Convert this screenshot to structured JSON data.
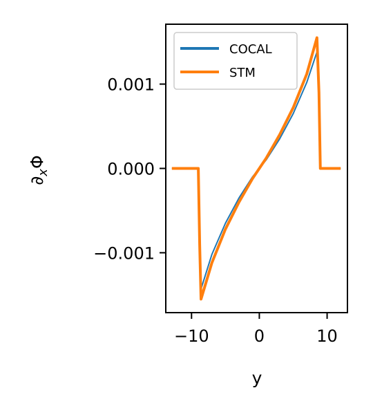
{
  "chart_data": {
    "type": "line",
    "xlabel": "y",
    "ylabel_main": "∂",
    "ylabel_sub": "x",
    "ylabel_tail": "Φ",
    "xlim": [
      -13.8,
      13.0
    ],
    "ylim": [
      -0.00171,
      0.00171
    ],
    "xticks": [
      {
        "value": -10,
        "label": "−10"
      },
      {
        "value": 0,
        "label": "0"
      },
      {
        "value": 10,
        "label": "10"
      }
    ],
    "yticks": [
      {
        "value": 0.001,
        "label": "0.001"
      },
      {
        "value": 0.0,
        "label": "0.000"
      },
      {
        "value": -0.001,
        "label": "−0.001"
      }
    ],
    "legend_position": "top-left",
    "series": [
      {
        "name": "COCAL",
        "color": "#1f77b4",
        "x": [
          -12.9,
          -9.0,
          -8.8,
          -8.6,
          -7.0,
          -5.0,
          -3.0,
          -1.0,
          0.0,
          1.0,
          3.0,
          5.0,
          7.0,
          8.5,
          8.8,
          9.0,
          12.0
        ],
        "y": [
          0.0,
          0.0,
          -0.0008,
          -0.00143,
          -0.00102,
          -0.00065,
          -0.00035,
          -0.0001,
          0.0,
          0.0001,
          0.00035,
          0.00065,
          0.00102,
          0.00138,
          0.0008,
          0.0,
          0.0
        ]
      },
      {
        "name": "STM",
        "color": "#ff7f0e",
        "x": [
          -12.9,
          -9.0,
          -8.8,
          -8.6,
          -7.0,
          -5.0,
          -3.0,
          -1.0,
          0.0,
          1.0,
          3.0,
          5.0,
          7.0,
          8.5,
          8.8,
          9.0,
          12.0
        ],
        "y": [
          0.0,
          0.0,
          -0.0009,
          -0.00155,
          -0.00112,
          -0.00072,
          -0.0004,
          -0.00012,
          0.0,
          0.00012,
          0.0004,
          0.00072,
          0.00112,
          0.00155,
          0.0009,
          0.0,
          0.0
        ]
      }
    ]
  }
}
